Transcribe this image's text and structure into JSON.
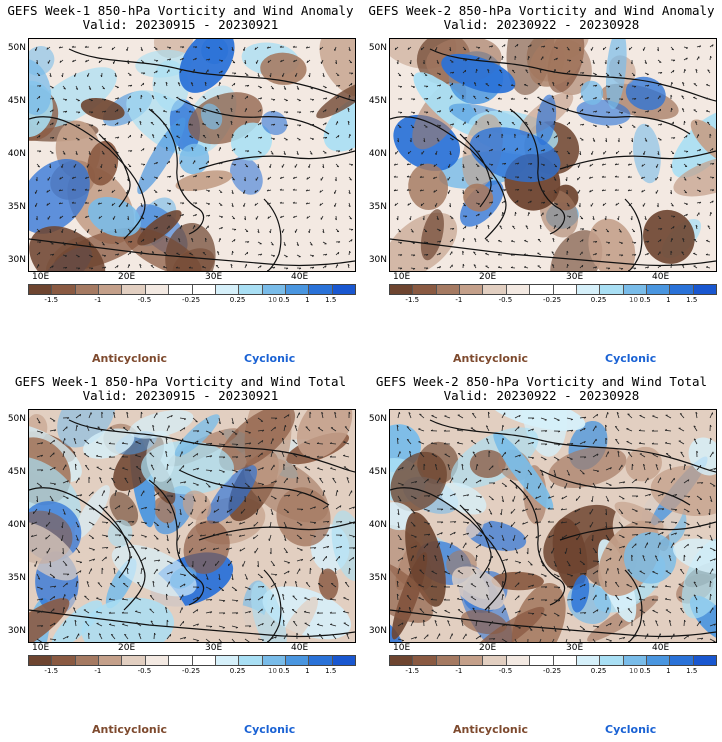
{
  "panels": [
    {
      "line1": "GEFS Week-1 850-hPa Vorticity and Wind Anomaly",
      "line2": "Valid: 20230915 - 20230921"
    },
    {
      "line1": "GEFS Week-2 850-hPa Vorticity and Wind Anomaly",
      "line2": "Valid: 20230922 - 20230928"
    },
    {
      "line1": "GEFS Week-1 850-hPa Vorticity and Wind Total",
      "line2": "Valid: 20230915 - 20230921"
    },
    {
      "line1": "GEFS Week-2 850-hPa Vorticity and Wind Total",
      "line2": "Valid: 20230922 - 20230928"
    }
  ],
  "lat_labels": [
    "50N",
    "45N",
    "40N",
    "35N",
    "30N"
  ],
  "lon_labels": [
    "10E",
    "20E",
    "30E",
    "40E"
  ],
  "colorbar": {
    "ticks": [
      "-1.5",
      "-1",
      "-0.5",
      "-0.25",
      "0.25",
      "0.5",
      "1",
      "1.5"
    ],
    "sci_label": "10",
    "colors": [
      "#6e4530",
      "#8a5a42",
      "#a57a62",
      "#c4a08a",
      "#e2cfc1",
      "#f3e9e2",
      "#ffffff",
      "#ffffff",
      "#d6f0fa",
      "#a9dff4",
      "#79bce9",
      "#4a96e0",
      "#2a72d8",
      "#1957d0"
    ]
  },
  "legend": {
    "anticyclonic": "Anticyclonic",
    "cyclonic": "Cyclonic"
  }
}
